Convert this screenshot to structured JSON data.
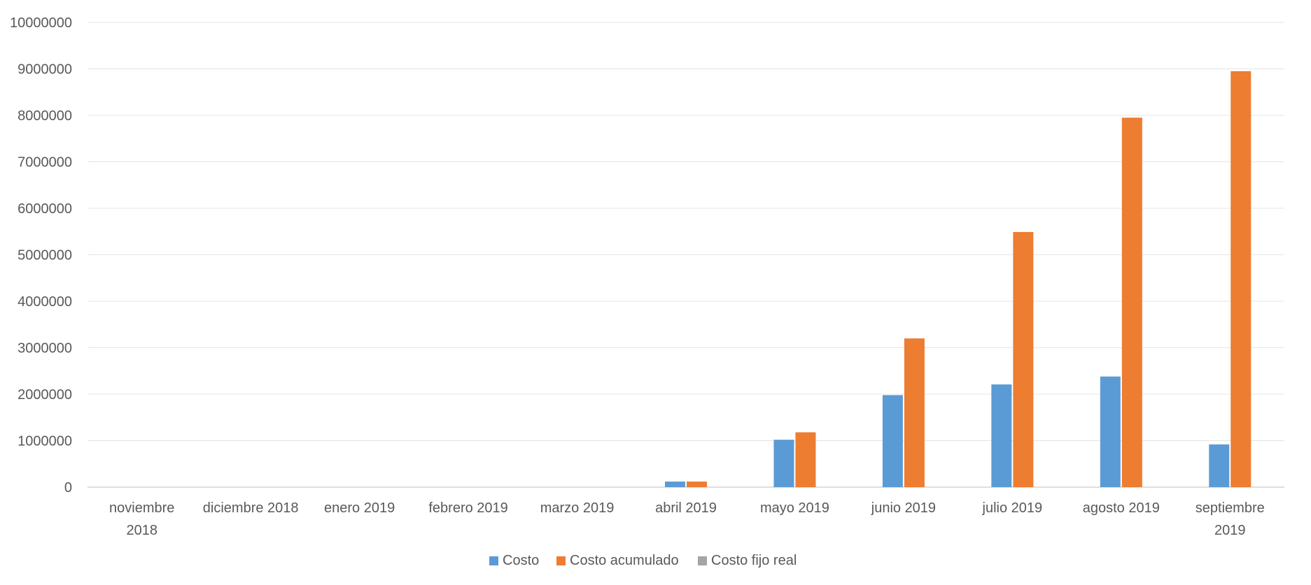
{
  "chart_data": {
    "type": "bar",
    "title": "",
    "xlabel": "",
    "ylabel": "",
    "ylim": [
      0,
      10000000
    ],
    "yticks": [
      0,
      1000000,
      2000000,
      3000000,
      4000000,
      5000000,
      6000000,
      7000000,
      8000000,
      9000000,
      10000000
    ],
    "ytick_labels": [
      "0",
      "1000000",
      "2000000",
      "3000000",
      "4000000",
      "5000000",
      "6000000",
      "7000000",
      "8000000",
      "9000000",
      "10000000"
    ],
    "grid": true,
    "legend_position": "bottom",
    "categories": [
      [
        "noviembre",
        "2018"
      ],
      [
        "diciembre 2018"
      ],
      [
        "enero 2019"
      ],
      [
        "febrero 2019"
      ],
      [
        "marzo 2019"
      ],
      [
        "abril 2019"
      ],
      [
        "mayo 2019"
      ],
      [
        "junio 2019"
      ],
      [
        "julio 2019"
      ],
      [
        "agosto 2019"
      ],
      [
        "septiembre",
        "2019"
      ]
    ],
    "series": [
      {
        "name": "Costo",
        "color": "#5B9BD5",
        "values": [
          0,
          0,
          0,
          0,
          0,
          120000,
          1020000,
          1980000,
          2210000,
          2380000,
          920000
        ]
      },
      {
        "name": "Costo acumulado",
        "color": "#ED7D31",
        "values": [
          0,
          0,
          0,
          0,
          0,
          120000,
          1180000,
          3200000,
          5490000,
          7950000,
          8950000
        ]
      },
      {
        "name": "Costo fijo real",
        "color": "#A5A5A5",
        "values": [
          0,
          0,
          0,
          0,
          0,
          0,
          0,
          0,
          0,
          0,
          0
        ]
      }
    ]
  }
}
